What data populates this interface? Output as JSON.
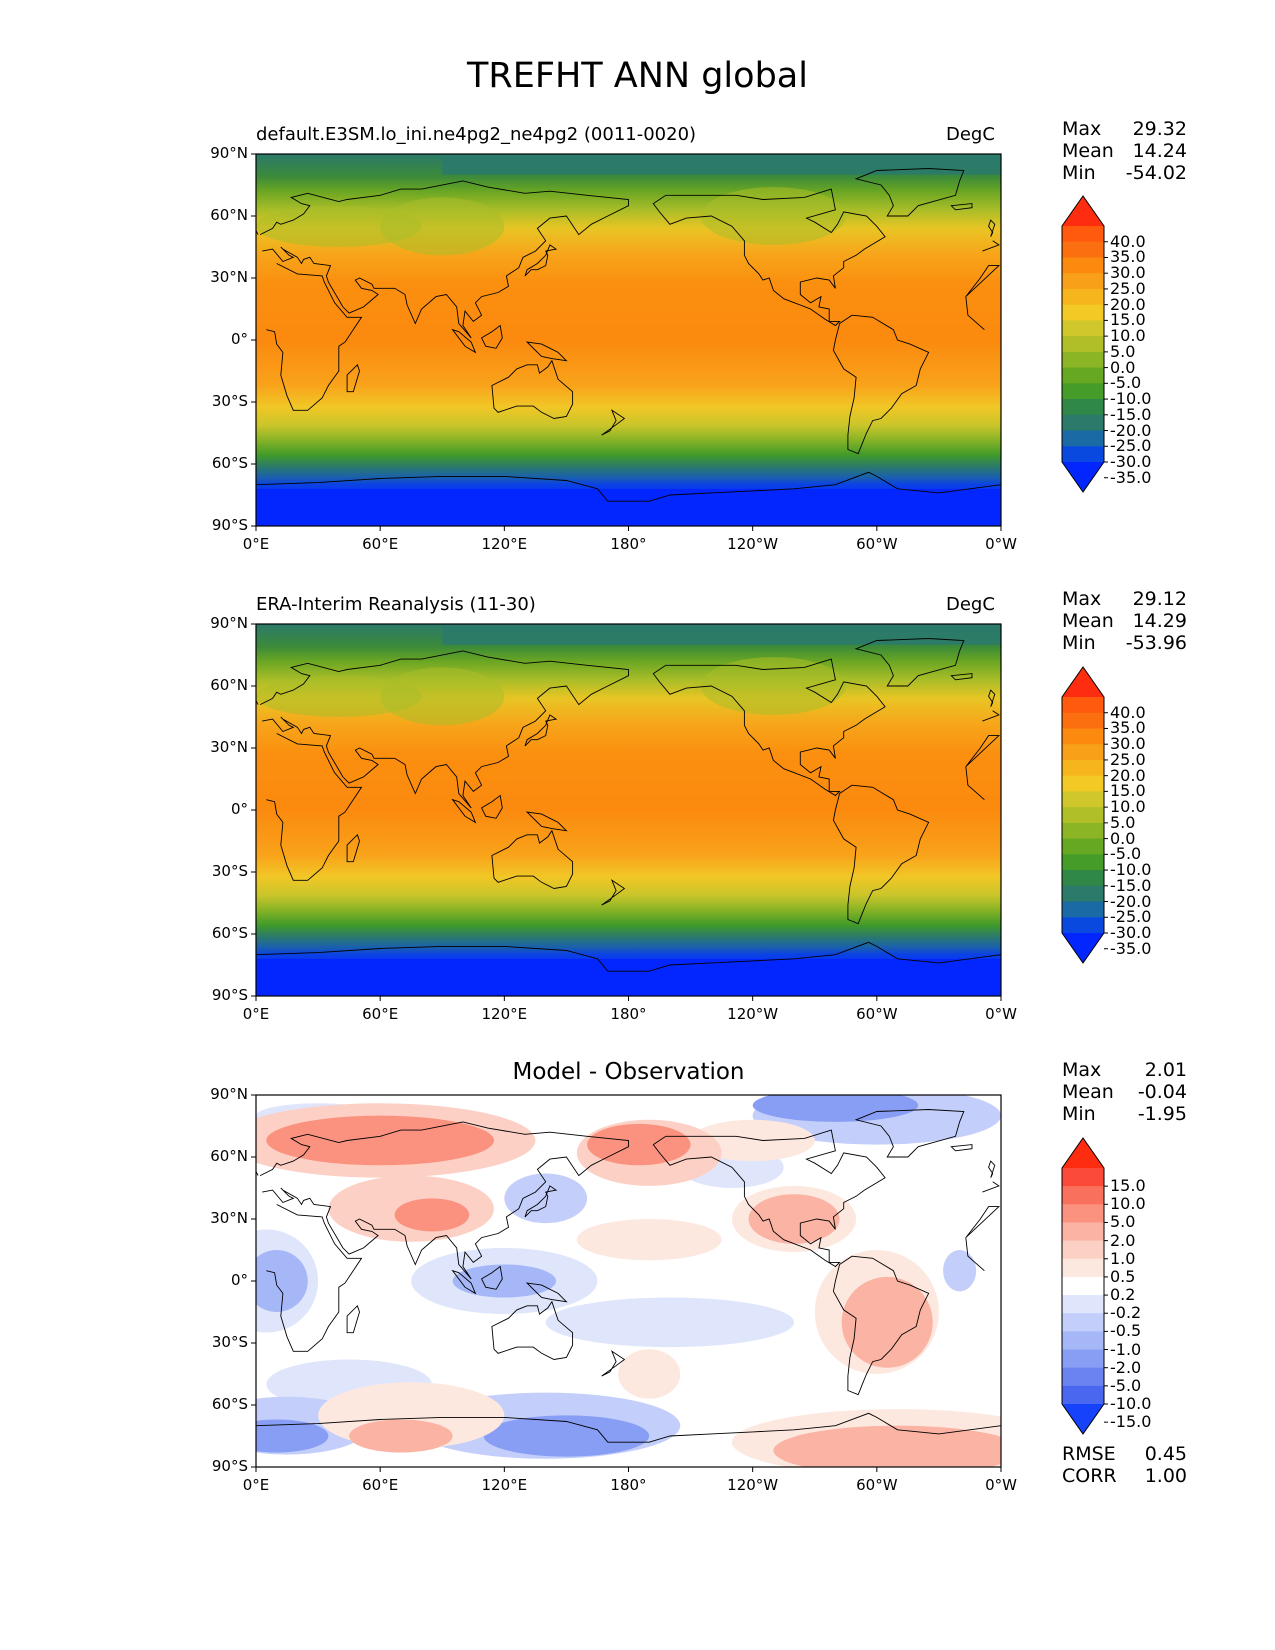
{
  "figure": {
    "title": "TREFHT ANN global"
  },
  "panels": [
    {
      "id": "test",
      "left_title": "default.E3SM.lo_ini.ne4pg2_ne4pg2 (0011-0020)",
      "center_title": "",
      "right_title": "DegC",
      "stats": [
        {
          "label": "Max",
          "value": "29.32"
        },
        {
          "label": "Mean",
          "value": "14.24"
        },
        {
          "label": "Min",
          "value": "-54.02"
        }
      ],
      "colorbar": {
        "labels": [
          "40.0",
          "35.0",
          "30.0",
          "25.0",
          "20.0",
          "15.0",
          "10.0",
          "5.0",
          "0.0",
          "-5.0",
          "-10.0",
          "-15.0",
          "-20.0",
          "-25.0",
          "-30.0",
          "-35.0"
        ],
        "colors": [
          "#ff2d10",
          "#ff5a0e",
          "#fc6f10",
          "#fb8a0f",
          "#f8a018",
          "#f6b51d",
          "#f2c925",
          "#cfc72b",
          "#b0bf28",
          "#8cb526",
          "#67a823",
          "#459c28",
          "#2f8748",
          "#2b7a6a",
          "#1a6aa6",
          "#0a49e0",
          "#0326ff"
        ]
      },
      "kind": "temperature",
      "variant": "model"
    },
    {
      "id": "reference",
      "left_title": "ERA-Interim Reanalysis (11-30)",
      "center_title": "",
      "right_title": "DegC",
      "stats": [
        {
          "label": "Max",
          "value": "29.12"
        },
        {
          "label": "Mean",
          "value": "14.29"
        },
        {
          "label": "Min",
          "value": "-53.96"
        }
      ],
      "colorbar": {
        "labels": [
          "40.0",
          "35.0",
          "30.0",
          "25.0",
          "20.0",
          "15.0",
          "10.0",
          "5.0",
          "0.0",
          "-5.0",
          "-10.0",
          "-15.0",
          "-20.0",
          "-25.0",
          "-30.0",
          "-35.0"
        ],
        "colors": [
          "#ff2d10",
          "#ff5a0e",
          "#fc6f10",
          "#fb8a0f",
          "#f8a018",
          "#f6b51d",
          "#f2c925",
          "#cfc72b",
          "#b0bf28",
          "#8cb526",
          "#67a823",
          "#459c28",
          "#2f8748",
          "#2b7a6a",
          "#1a6aa6",
          "#0a49e0",
          "#0326ff"
        ]
      },
      "kind": "temperature",
      "variant": "obs"
    },
    {
      "id": "diff",
      "left_title": "",
      "center_title": "Model - Observation",
      "right_title": "",
      "stats": [
        {
          "label": "Max",
          "value": "2.01"
        },
        {
          "label": "Mean",
          "value": "-0.04"
        },
        {
          "label": "Min",
          "value": "-1.95"
        }
      ],
      "extra_stats": [
        {
          "label": "RMSE",
          "value": "0.45"
        },
        {
          "label": "CORR",
          "value": "1.00"
        }
      ],
      "colorbar": {
        "labels": [
          "15.0",
          "10.0",
          "5.0",
          "2.0",
          "1.0",
          "0.5",
          "0.2",
          "-0.2",
          "-0.5",
          "-1.0",
          "-2.0",
          "-5.0",
          "-10.0",
          "-15.0"
        ],
        "colors": [
          "#ff2d10",
          "#fb4a3a",
          "#f9705d",
          "#fa927f",
          "#fbb3a4",
          "#fcd0c4",
          "#fde8e0",
          "#ffffff",
          "#dfe6fb",
          "#c3cffa",
          "#a6b7f7",
          "#889ef4",
          "#6a83f1",
          "#4a67f0",
          "#1742fb"
        ]
      },
      "kind": "difference"
    }
  ],
  "axes": {
    "y_ticks": [
      "90°N",
      "60°N",
      "30°N",
      "0°",
      "30°S",
      "60°S",
      "90°S"
    ],
    "x_ticks": [
      "0°E",
      "60°E",
      "120°E",
      "180°",
      "120°W",
      "60°W",
      "0°W"
    ]
  }
}
